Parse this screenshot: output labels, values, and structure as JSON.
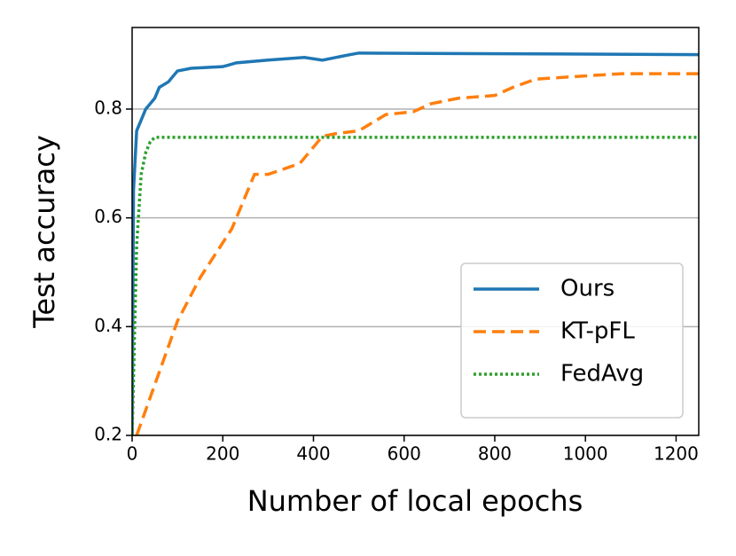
{
  "chart_data": {
    "type": "line",
    "xlabel": "Number of local epochs",
    "ylabel": "Test accuracy",
    "xlim": [
      0,
      1250
    ],
    "ylim": [
      0.2,
      0.95
    ],
    "xticks": [
      0,
      200,
      400,
      600,
      800,
      1000,
      1200
    ],
    "yticks": [
      0.2,
      0.4,
      0.6,
      0.8
    ],
    "grid": "y",
    "legend": "lower right",
    "series": [
      {
        "name": "Ours",
        "color": "#1f77b4",
        "linestyle": "solid",
        "x": [
          0,
          3,
          10,
          20,
          30,
          50,
          60,
          80,
          100,
          130,
          200,
          230,
          300,
          380,
          420,
          480,
          500,
          1250
        ],
        "values": [
          0.2,
          0.65,
          0.76,
          0.78,
          0.8,
          0.82,
          0.84,
          0.85,
          0.87,
          0.875,
          0.878,
          0.885,
          0.89,
          0.895,
          0.89,
          0.9,
          0.903,
          0.9
        ]
      },
      {
        "name": "KT-pFL",
        "color": "#ff7f0e",
        "linestyle": "dashed",
        "x": [
          10,
          100,
          150,
          220,
          270,
          300,
          370,
          420,
          450,
          500,
          560,
          620,
          660,
          720,
          800,
          840,
          890,
          980,
          1080,
          1250
        ],
        "values": [
          0.2,
          0.41,
          0.49,
          0.58,
          0.68,
          0.68,
          0.7,
          0.75,
          0.755,
          0.76,
          0.79,
          0.795,
          0.81,
          0.82,
          0.825,
          0.84,
          0.855,
          0.86,
          0.865,
          0.865
        ]
      },
      {
        "name": "FedAvg",
        "color": "#2ca02c",
        "linestyle": "dotted",
        "x": [
          0,
          10,
          20,
          30,
          40,
          50,
          1250
        ],
        "values": [
          0.2,
          0.55,
          0.68,
          0.72,
          0.74,
          0.748,
          0.748
        ]
      }
    ]
  }
}
